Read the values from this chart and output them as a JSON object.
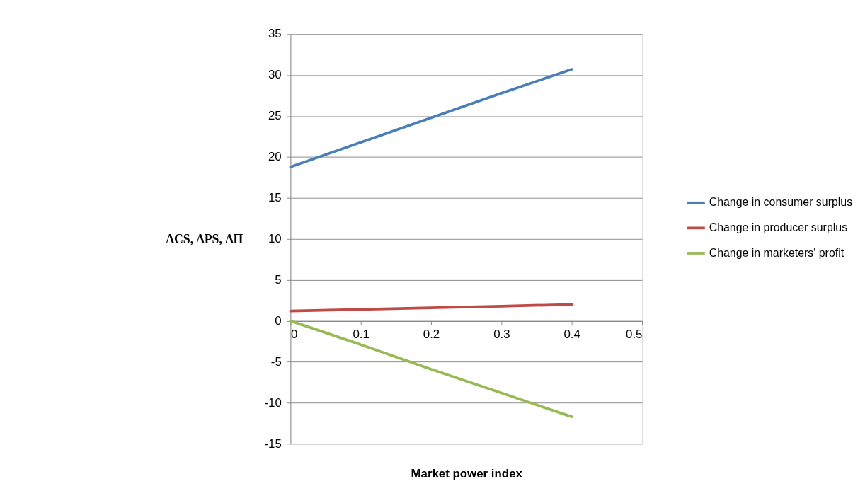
{
  "chart_data": {
    "type": "line",
    "xlabel": "Market power index",
    "ylabel": "ΔCS, ΔPS, ΔΠ",
    "x": [
      0,
      0.1,
      0.2,
      0.3,
      0.4
    ],
    "series": [
      {
        "name": "Change in consumer surplus",
        "color": "#4a7ebb",
        "values": [
          18.8,
          21.8,
          24.8,
          27.8,
          30.7
        ]
      },
      {
        "name": "Change in producer surplus",
        "color": "#be4b48",
        "values": [
          1.2,
          1.4,
          1.6,
          1.8,
          2.0
        ]
      },
      {
        "name": "Change in marketers' profit",
        "color": "#98b954",
        "values": [
          0,
          -2.9,
          -5.9,
          -8.8,
          -11.7
        ]
      }
    ],
    "xlim": [
      0,
      0.5
    ],
    "xticks": [
      0,
      0.1,
      0.2,
      0.3,
      0.4,
      0.5
    ],
    "ylim": [
      -15,
      35
    ],
    "yticks": [
      -15,
      -10,
      -5,
      0,
      5,
      10,
      15,
      20,
      25,
      30,
      35
    ],
    "grid": "y",
    "legend": "right",
    "marker": "none",
    "line_style": "solid"
  }
}
